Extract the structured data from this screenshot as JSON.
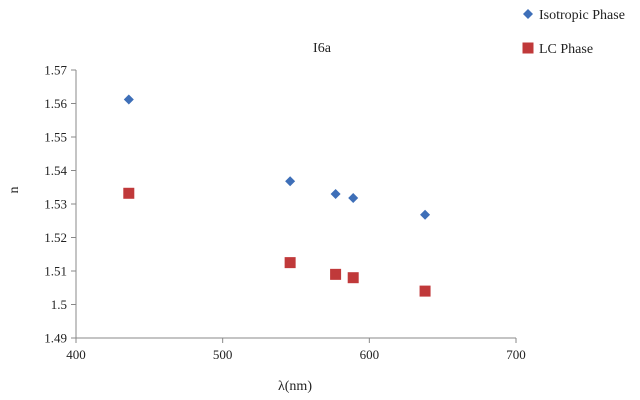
{
  "chart_data": {
    "type": "scatter",
    "title": "I6a",
    "xlabel": "λ(nm)",
    "ylabel": "n",
    "xlim": [
      400,
      700
    ],
    "ylim": [
      1.49,
      1.57
    ],
    "xticks": [
      "400",
      "500",
      "600",
      "700"
    ],
    "yticks": [
      "1.49",
      "1.5",
      "1.51",
      "1.52",
      "1.53",
      "1.54",
      "1.55",
      "1.56",
      "1.57"
    ],
    "grid": false,
    "legend_position": "top-right",
    "series": [
      {
        "name": "Isotropic Phase",
        "marker": "diamond",
        "color": "#3e6fb8",
        "x": [
          436,
          546,
          577,
          589,
          638
        ],
        "y": [
          1.5612,
          1.5368,
          1.533,
          1.5318,
          1.5268
        ]
      },
      {
        "name": "LC Phase",
        "marker": "square",
        "color": "#c0393a",
        "x": [
          436,
          546,
          577,
          589,
          638
        ],
        "y": [
          1.5332,
          1.5125,
          1.509,
          1.508,
          1.504
        ]
      }
    ]
  }
}
